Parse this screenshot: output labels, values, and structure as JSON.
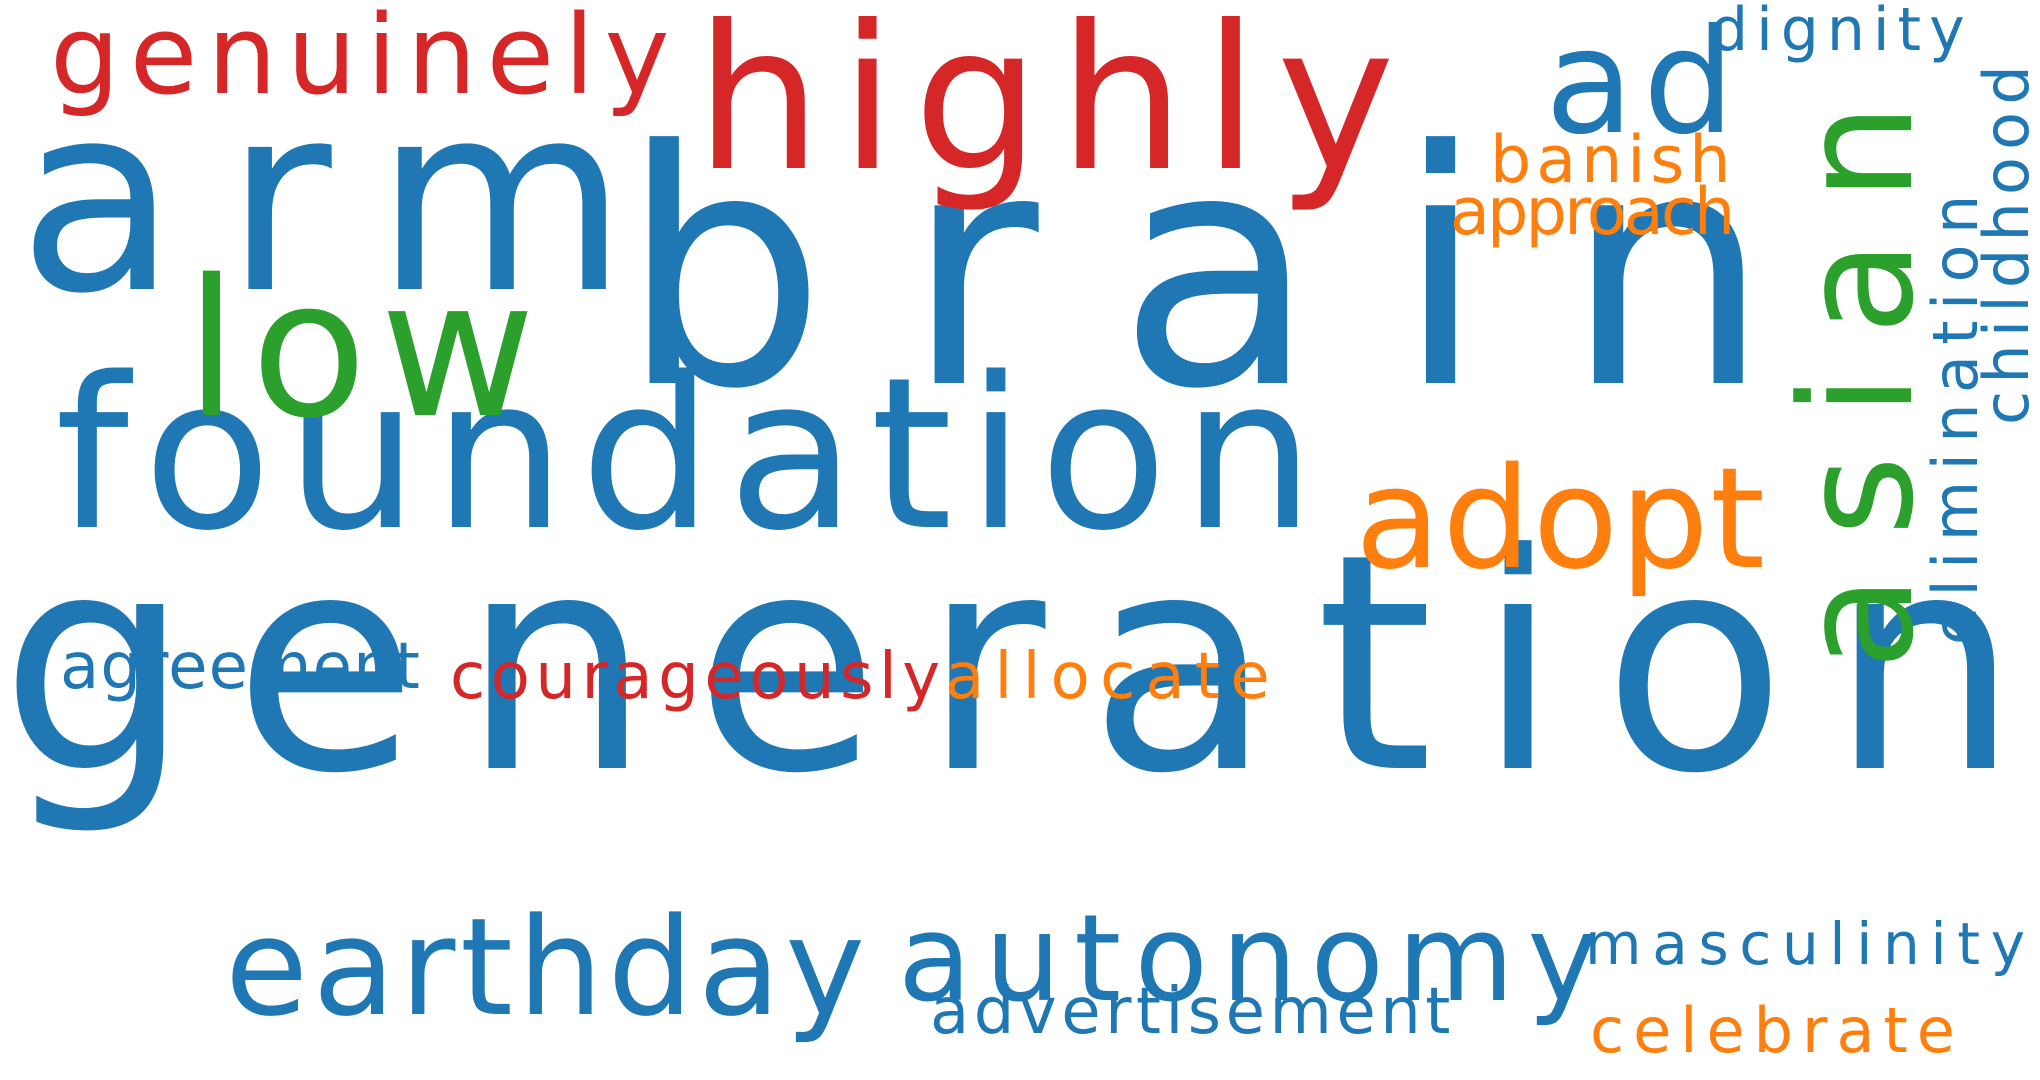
{
  "colors": {
    "blue": "#1f77b4",
    "red": "#d62728",
    "green": "#2ca02c",
    "orange": "#ff7f0e"
  },
  "words": [
    {
      "text": "generation",
      "color": "blue",
      "orientation": "horizontal"
    },
    {
      "text": "brain",
      "color": "blue",
      "orientation": "horizontal"
    },
    {
      "text": "arm",
      "color": "blue",
      "orientation": "horizontal"
    },
    {
      "text": "highly",
      "color": "red",
      "orientation": "horizontal"
    },
    {
      "text": "foundation",
      "color": "blue",
      "orientation": "horizontal"
    },
    {
      "text": "low",
      "color": "green",
      "orientation": "horizontal"
    },
    {
      "text": "genuinely",
      "color": "red",
      "orientation": "horizontal"
    },
    {
      "text": "ad",
      "color": "blue",
      "orientation": "horizontal"
    },
    {
      "text": "asian",
      "color": "green",
      "orientation": "vertical"
    },
    {
      "text": "adopt",
      "color": "orange",
      "orientation": "horizontal"
    },
    {
      "text": "earthday",
      "color": "blue",
      "orientation": "horizontal"
    },
    {
      "text": "autonomy",
      "color": "blue",
      "orientation": "horizontal"
    },
    {
      "text": "dignity",
      "color": "blue",
      "orientation": "horizontal"
    },
    {
      "text": "banish",
      "color": "orange",
      "orientation": "horizontal"
    },
    {
      "text": "approach",
      "color": "orange",
      "orientation": "horizontal"
    },
    {
      "text": "childhood",
      "color": "blue",
      "orientation": "vertical"
    },
    {
      "text": "elimination",
      "color": "blue",
      "orientation": "vertical"
    },
    {
      "text": "agreement",
      "color": "blue",
      "orientation": "horizontal"
    },
    {
      "text": "courageously",
      "color": "red",
      "orientation": "horizontal"
    },
    {
      "text": "allocate",
      "color": "orange",
      "orientation": "horizontal"
    },
    {
      "text": "masculinity",
      "color": "blue",
      "orientation": "horizontal"
    },
    {
      "text": "advertisement",
      "color": "blue",
      "orientation": "horizontal"
    },
    {
      "text": "celebrate",
      "color": "orange",
      "orientation": "horizontal"
    }
  ]
}
